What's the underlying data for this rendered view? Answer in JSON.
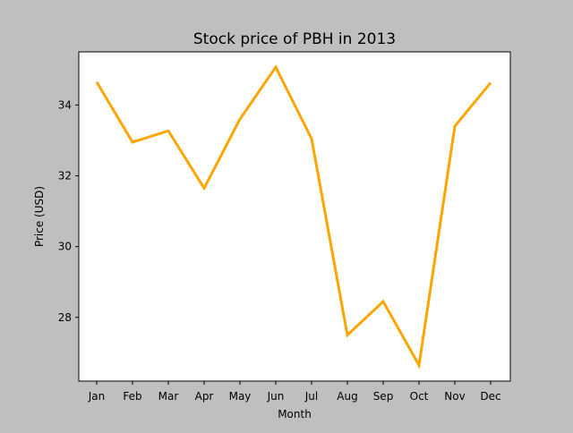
{
  "chart_data": {
    "type": "line",
    "title": "Stock price of PBH in 2013",
    "xlabel": "Month",
    "ylabel": "Price (USD)",
    "categories": [
      "Jan",
      "Feb",
      "Mar",
      "Apr",
      "May",
      "Jun",
      "Jul",
      "Aug",
      "Sep",
      "Oct",
      "Nov",
      "Dec"
    ],
    "series": [
      {
        "values": [
          34.65,
          32.95,
          33.27,
          31.65,
          33.6,
          35.07,
          33.05,
          27.5,
          28.45,
          26.65,
          33.4,
          34.63
        ],
        "color": "#ffa500"
      }
    ],
    "ylim": [
      26.2,
      35.5
    ],
    "yticks": [
      28,
      30,
      32,
      34
    ],
    "grid": false,
    "legend": "none",
    "background_color": "#bfbfbf",
    "plot_background_color": "#ffffff"
  }
}
